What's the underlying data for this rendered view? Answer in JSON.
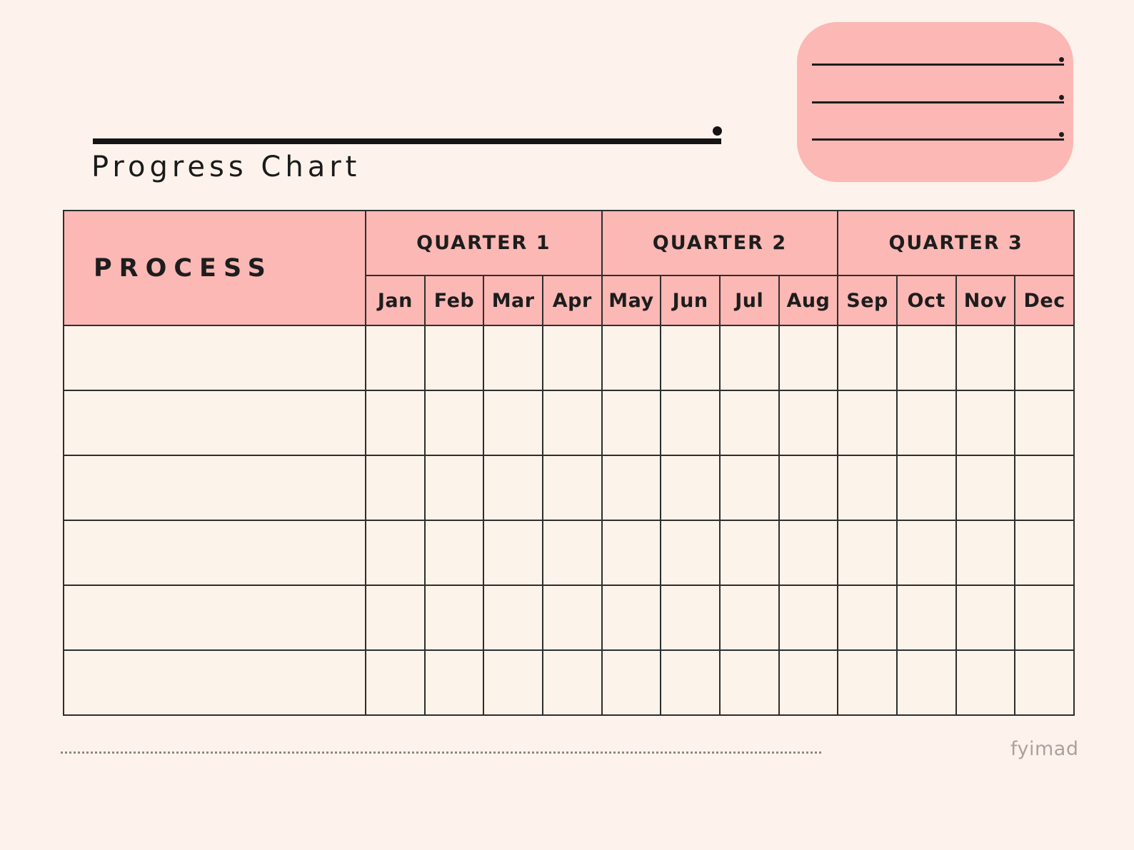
{
  "page": {
    "title": "Progress Chart",
    "brand": "fyimad"
  },
  "note_box": {
    "line_count": 3
  },
  "table": {
    "process_label": "PROCESS",
    "quarters": [
      {
        "label": "QUARTER 1",
        "months": [
          "Jan",
          "Feb",
          "Mar",
          "Apr"
        ]
      },
      {
        "label": "QUARTER 2",
        "months": [
          "May",
          "Jun",
          "Jul",
          "Aug"
        ]
      },
      {
        "label": "QUARTER 3",
        "months": [
          "Sep",
          "Oct",
          "Nov",
          "Dec"
        ]
      }
    ],
    "row_count": 6,
    "column_count": 13
  },
  "colors": {
    "background": "#fdf3ec",
    "accent_pink": "#fcb8b4",
    "border_dark": "#2e2e2e",
    "text_dark": "#1c1c1c",
    "muted_gray": "#aba39b"
  }
}
